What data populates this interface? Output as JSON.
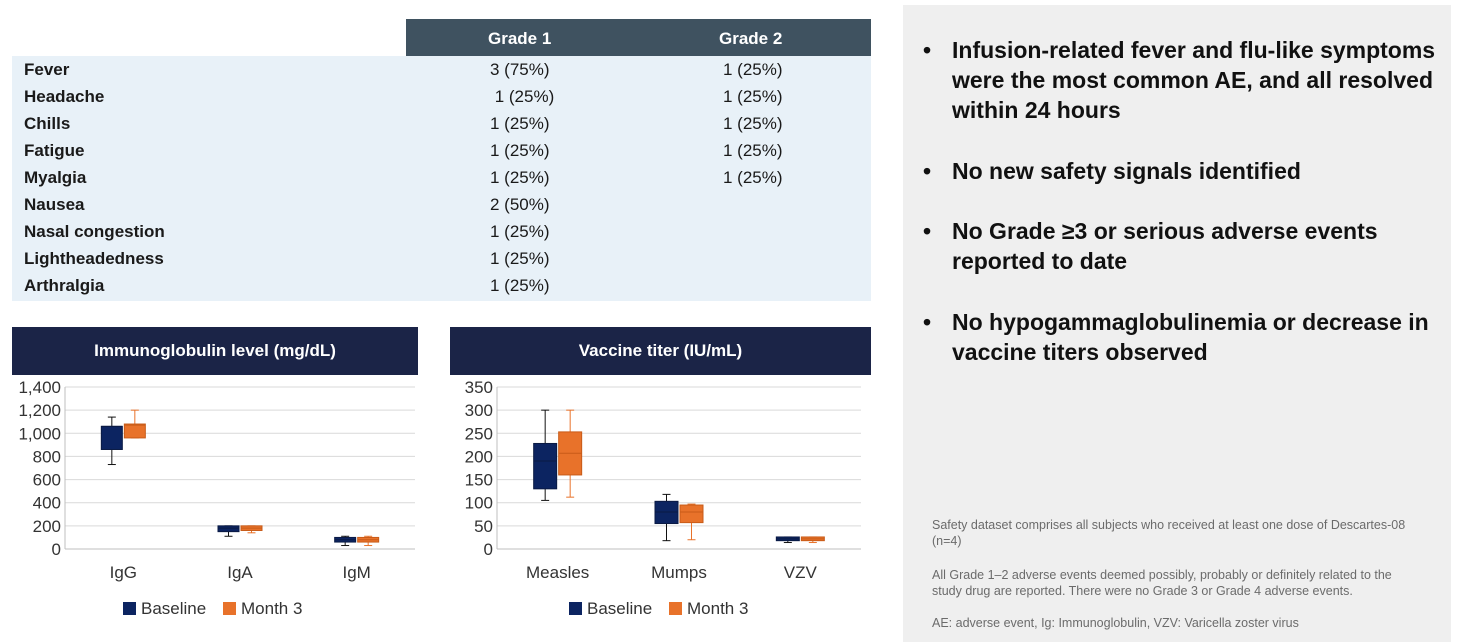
{
  "ae_table": {
    "headers": [
      "Grade 1",
      "Grade 2"
    ],
    "rows": [
      {
        "event": "Fever",
        "grade1": "3 (75%)",
        "grade2": "1 (25%)"
      },
      {
        "event": "Headache",
        "grade1": " 1 (25%)",
        "grade2": "1 (25%)"
      },
      {
        "event": "Chills",
        "grade1": "1 (25%)",
        "grade2": "1 (25%)"
      },
      {
        "event": "Fatigue",
        "grade1": "1 (25%)",
        "grade2": "1 (25%)"
      },
      {
        "event": "Myalgia",
        "grade1": "1 (25%)",
        "grade2": "1 (25%)"
      },
      {
        "event": "Nausea",
        "grade1": "2 (50%)",
        "grade2": ""
      },
      {
        "event": "Nasal congestion",
        "grade1": "1 (25%)",
        "grade2": ""
      },
      {
        "event": "Lightheadedness",
        "grade1": "1 (25%)",
        "grade2": ""
      },
      {
        "event": "Arthralgia",
        "grade1": "1 (25%)",
        "grade2": ""
      }
    ]
  },
  "bullets": [
    "Infusion-related fever and flu-like symptoms were the most common AE, and all resolved within 24 hours",
    "No new safety signals identified",
    "No Grade ≥3 or serious adverse events reported to date",
    "No hypogammaglobulinemia or decrease in vaccine titers observed"
  ],
  "bullet_marker": "•",
  "footnotes": [
    "Safety dataset comprises all subjects who received at least one dose of Descartes-08 (n=4)",
    "All Grade 1–2 adverse events deemed possibly, probably or definitely related to the study drug are reported. There were no Grade 3 or Grade 4 adverse events.",
    "AE: adverse event, Ig: Immunoglobulin, VZV: Varicella zoster virus"
  ],
  "colors": {
    "baseline": "#0c2461",
    "month3": "#e8722a",
    "header_dark": "#1b2447",
    "table_header": "#3f5260"
  },
  "chart_data": [
    {
      "type": "box",
      "title": "Immunoglobulin level (mg/dL)",
      "categories": [
        "IgG",
        "IgA",
        "IgM"
      ],
      "ylim": [
        0,
        1400
      ],
      "yticks": [
        0,
        200,
        400,
        600,
        800,
        1000,
        1200,
        1400
      ],
      "ytick_labels": [
        "0",
        "200",
        "400",
        "600",
        "800",
        "1,000",
        "1,200",
        "1,400"
      ],
      "grid": true,
      "legend": "bottom",
      "series": [
        {
          "name": "Baseline",
          "boxes": [
            {
              "min": 730,
              "q1": 860,
              "median": 1060,
              "q3": 1060,
              "max": 1140
            },
            {
              "min": 110,
              "q1": 150,
              "median": 180,
              "q3": 200,
              "max": 200
            },
            {
              "min": 30,
              "q1": 60,
              "median": 80,
              "q3": 100,
              "max": 110
            }
          ]
        },
        {
          "name": "Month 3",
          "boxes": [
            {
              "min": 960,
              "q1": 960,
              "median": 1070,
              "q3": 1080,
              "max": 1200
            },
            {
              "min": 140,
              "q1": 160,
              "median": 180,
              "q3": 200,
              "max": 200
            },
            {
              "min": 30,
              "q1": 60,
              "median": 80,
              "q3": 100,
              "max": 110
            }
          ]
        }
      ]
    },
    {
      "type": "box",
      "title": "Vaccine titer (IU/mL)",
      "categories": [
        "Measles",
        "Mumps",
        "VZV"
      ],
      "ylim": [
        0,
        350
      ],
      "yticks": [
        0,
        50,
        100,
        150,
        200,
        250,
        300,
        350
      ],
      "ytick_labels": [
        "0",
        "50",
        "100",
        "150",
        "200",
        "250",
        "300",
        "350"
      ],
      "grid": true,
      "legend": "bottom",
      "series": [
        {
          "name": "Baseline",
          "boxes": [
            {
              "min": 105,
              "q1": 130,
              "median": 190,
              "q3": 228,
              "max": 300
            },
            {
              "min": 18,
              "q1": 55,
              "median": 80,
              "q3": 103,
              "max": 118
            },
            {
              "min": 14,
              "q1": 18,
              "median": 22,
              "q3": 26,
              "max": 26
            }
          ]
        },
        {
          "name": "Month 3",
          "boxes": [
            {
              "min": 112,
              "q1": 160,
              "median": 207,
              "q3": 253,
              "max": 300
            },
            {
              "min": 20,
              "q1": 57,
              "median": 80,
              "q3": 95,
              "max": 97
            },
            {
              "min": 14,
              "q1": 18,
              "median": 22,
              "q3": 26,
              "max": 26
            }
          ]
        }
      ]
    }
  ]
}
